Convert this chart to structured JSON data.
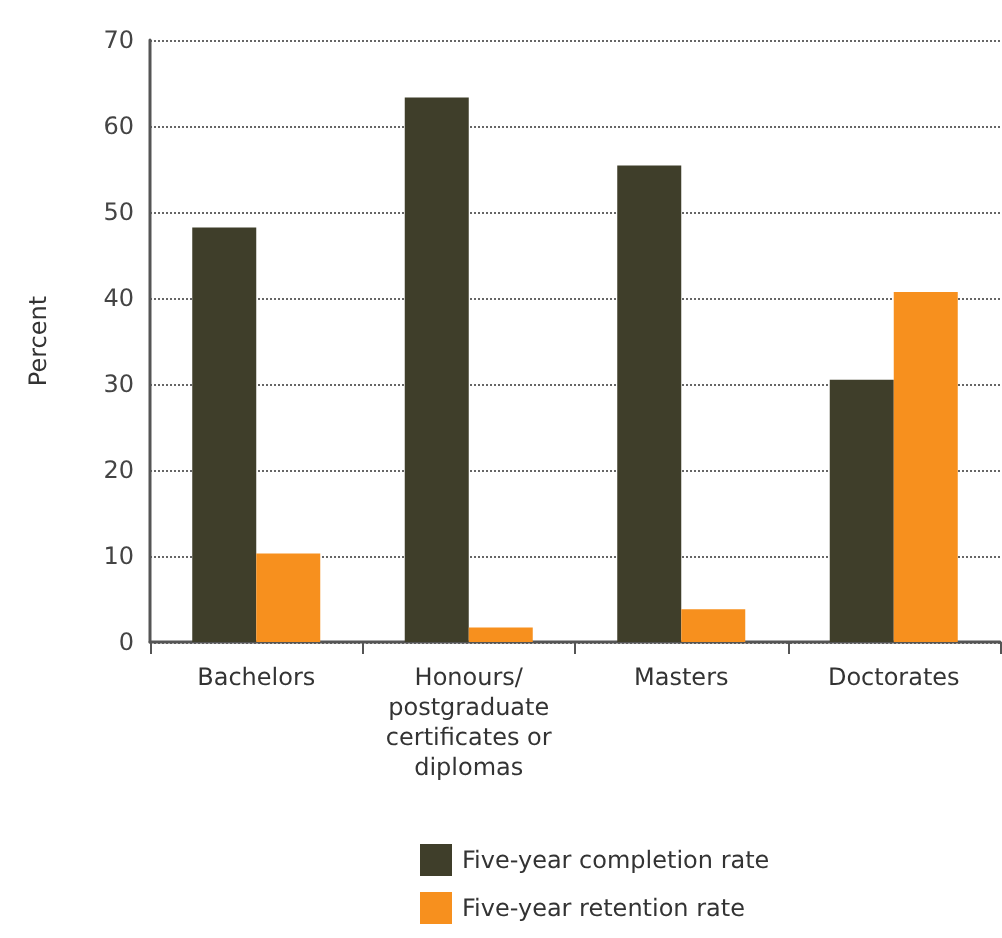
{
  "chart_data": {
    "type": "bar",
    "ylabel": "Percent",
    "categories": [
      "Bachelors",
      "Honours/\npostgraduate\ncertificates or\ndiplomas",
      "Masters",
      "Doctorates"
    ],
    "series": [
      {
        "name": "Five-year completion rate",
        "color": "#3f3e2a",
        "values": [
          48.2,
          63.3,
          55.4,
          30.5
        ]
      },
      {
        "name": "Five-year retention rate",
        "color": "#f7901e",
        "values": [
          10.3,
          1.7,
          3.8,
          40.7
        ]
      }
    ],
    "ylim": [
      0,
      70
    ],
    "yticks": [
      0,
      10,
      20,
      30,
      40,
      50,
      60,
      70
    ],
    "grid": "y",
    "legend": "bottom"
  }
}
